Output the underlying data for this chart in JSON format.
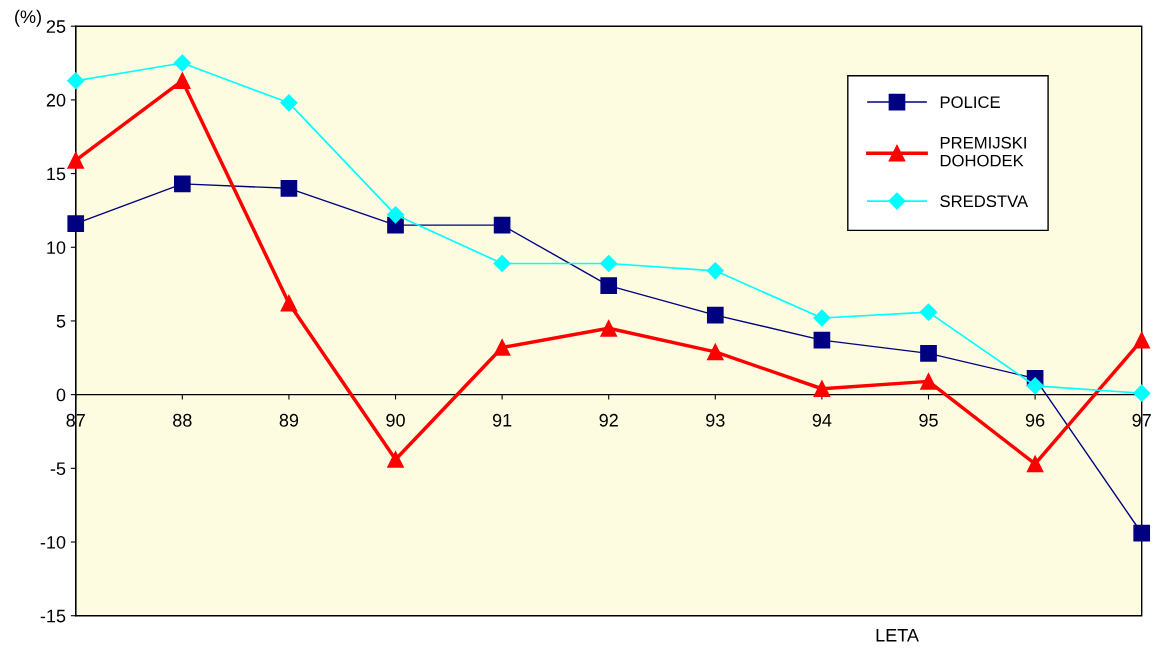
{
  "chart_data": {
    "type": "line",
    "ylabel": "(%)",
    "xlabel": "LETA",
    "categories": [
      "87",
      "88",
      "89",
      "90",
      "91",
      "92",
      "93",
      "94",
      "95",
      "96",
      "97"
    ],
    "series": [
      {
        "name": "POLICE",
        "color": "#000080",
        "marker": "square",
        "values": [
          11.6,
          14.3,
          14.0,
          11.5,
          11.5,
          7.4,
          5.4,
          3.7,
          2.8,
          1.1,
          -9.4
        ]
      },
      {
        "name": "PREMIJSKI\nDOHODEK",
        "color": "#ff0000",
        "marker": "triangle",
        "values": [
          15.9,
          21.3,
          6.2,
          -4.4,
          3.2,
          4.5,
          2.9,
          0.4,
          0.9,
          -4.7,
          3.7
        ]
      },
      {
        "name": "SREDSTVA",
        "color": "#00ffff",
        "marker": "diamond",
        "values": [
          21.3,
          22.5,
          19.8,
          12.2,
          8.9,
          8.9,
          8.4,
          5.2,
          5.6,
          0.6,
          0.1
        ]
      }
    ],
    "ylim": [
      -15,
      25
    ],
    "yticks": [
      -15,
      -10,
      -5,
      0,
      5,
      10,
      15,
      20,
      25
    ],
    "legend": "top right",
    "grid": false
  }
}
